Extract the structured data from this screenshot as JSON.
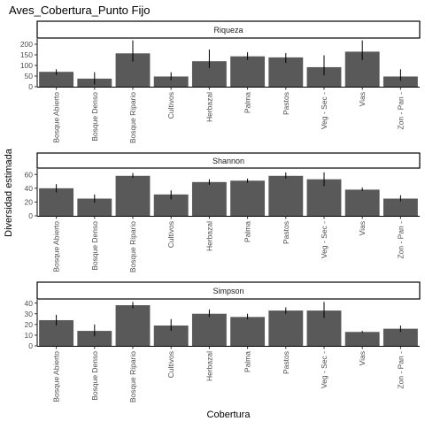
{
  "chart_data": {
    "type": "bar",
    "title": "Aves_Cobertura_Punto Fijo",
    "xlabel": "Cobertura",
    "ylabel": "Diversidad estimada",
    "categories": [
      "Bosque Abierto",
      "Bosque Denso",
      "Bosque Ripario",
      "Cultivos",
      "Herbazal",
      "Palma",
      "Pastos",
      "Veg - Sec -",
      "Vias",
      "Zon - Pan -"
    ],
    "grid": false,
    "bar_color": "#595959",
    "panels": [
      {
        "name": "Riqueza",
        "ylim": [
          0,
          225
        ],
        "yticks": [
          0,
          50,
          100,
          150,
          200
        ],
        "values": [
          70,
          38,
          157,
          48,
          120,
          143,
          138,
          92,
          165,
          48
        ],
        "err_low": [
          55,
          10,
          118,
          30,
          88,
          126,
          112,
          53,
          125,
          28
        ],
        "err_high": [
          82,
          68,
          218,
          68,
          175,
          162,
          158,
          148,
          218,
          82
        ]
      },
      {
        "name": "Shannon",
        "ylim": [
          0,
          68
        ],
        "yticks": [
          0,
          20,
          40,
          60
        ],
        "values": [
          40,
          25,
          58,
          31,
          49,
          51,
          58,
          53,
          38,
          25
        ],
        "err_low": [
          34,
          19,
          55,
          24,
          45,
          48,
          54,
          43,
          36,
          21
        ],
        "err_high": [
          46,
          31,
          62,
          37,
          53,
          54,
          63,
          63,
          41,
          30
        ]
      },
      {
        "name": "Simpson",
        "ylim": [
          0,
          43
        ],
        "yticks": [
          0,
          10,
          20,
          30,
          40
        ],
        "values": [
          24,
          14,
          38,
          19,
          30,
          27,
          33,
          33,
          13,
          16
        ],
        "err_low": [
          19,
          9,
          35,
          14,
          27,
          25,
          30,
          26,
          12,
          13
        ],
        "err_high": [
          29,
          20,
          41,
          25,
          34,
          30,
          36,
          41,
          14,
          19
        ]
      }
    ]
  }
}
